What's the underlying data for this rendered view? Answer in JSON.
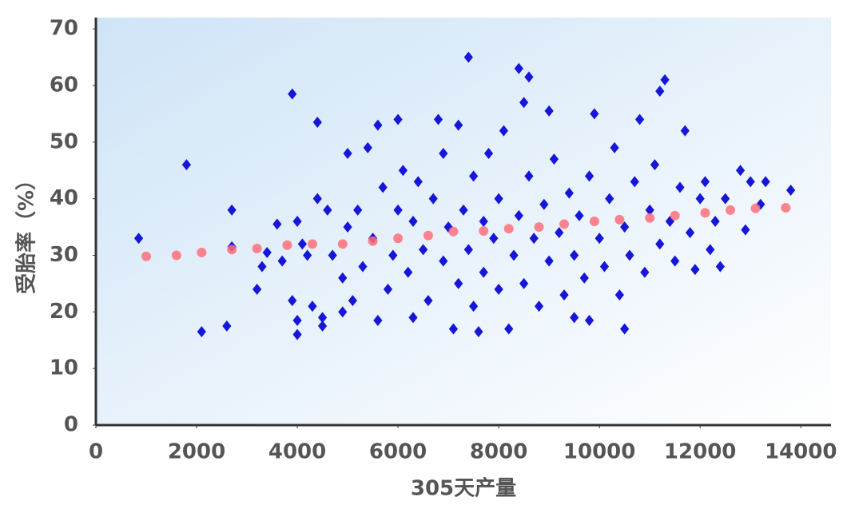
{
  "chart_data": {
    "type": "scatter",
    "x_label": "305天产量",
    "y_label": "受胎率（%）",
    "xlim": [
      0,
      14600
    ],
    "ylim": [
      0,
      72
    ],
    "xticks": [
      0,
      2000,
      4000,
      6000,
      8000,
      10000,
      12000,
      14000
    ],
    "yticks": [
      0,
      10,
      20,
      30,
      40,
      50,
      60,
      70
    ],
    "grid": false,
    "series": [
      {
        "marker": "diamond",
        "color": "#1616d8",
        "x": [
          850,
          1800,
          2100,
          2600,
          2700,
          2700,
          3200,
          3300,
          3400,
          3600,
          3700,
          3900,
          3900,
          4000,
          4000,
          4000,
          4100,
          4200,
          4300,
          4400,
          4400,
          4500,
          4500,
          4600,
          4700,
          4900,
          4900,
          5000,
          5000,
          5100,
          5200,
          5300,
          5400,
          5500,
          5600,
          5600,
          5700,
          5800,
          5900,
          6000,
          6000,
          6100,
          6200,
          6300,
          6300,
          6400,
          6500,
          6600,
          6700,
          6800,
          6900,
          6900,
          7000,
          7100,
          7200,
          7200,
          7300,
          7400,
          7400,
          7500,
          7500,
          7600,
          7700,
          7700,
          7800,
          7900,
          8000,
          8000,
          8100,
          8200,
          8300,
          8400,
          8400,
          8500,
          8500,
          8600,
          8600,
          8700,
          8800,
          8900,
          9000,
          9000,
          9100,
          9200,
          9300,
          9400,
          9500,
          9500,
          9600,
          9700,
          9800,
          9800,
          9900,
          10000,
          10100,
          10200,
          10300,
          10400,
          10500,
          10500,
          10600,
          10700,
          10800,
          10900,
          11000,
          11100,
          11200,
          11200,
          11300,
          11400,
          11500,
          11600,
          11700,
          11800,
          11900,
          12000,
          12100,
          12200,
          12300,
          12400,
          12500,
          12800,
          12900,
          13000,
          13200,
          13300,
          13800
        ],
        "values": [
          33,
          46,
          16.5,
          17.5,
          38,
          31.5,
          24,
          28,
          30.5,
          35.5,
          29,
          58.5,
          22,
          16,
          18.5,
          36,
          32,
          30,
          21,
          40,
          53.5,
          19,
          17.5,
          38,
          30,
          26,
          20,
          48,
          35,
          22,
          38,
          28,
          49,
          33,
          18.5,
          53,
          42,
          24,
          30,
          54,
          38,
          45,
          27,
          19,
          36,
          43,
          31,
          22,
          40,
          54,
          29,
          48,
          35,
          17,
          25,
          53,
          38,
          65,
          31,
          44,
          21,
          16.5,
          36,
          27,
          48,
          33,
          24,
          40,
          52,
          17,
          30,
          63,
          37,
          57,
          25,
          61.5,
          44,
          33,
          21,
          39,
          29,
          55.5,
          47,
          34,
          23,
          41,
          19,
          30,
          37,
          26,
          44,
          18.5,
          55,
          33,
          28,
          40,
          49,
          23,
          17,
          35,
          30,
          43,
          54,
          27,
          38,
          46,
          32,
          59,
          61,
          36,
          29,
          42,
          52,
          34,
          27.5,
          40,
          43,
          31,
          36,
          28,
          40,
          45,
          34.5,
          43,
          39,
          43,
          41.5
        ]
      },
      {
        "marker": "dot",
        "color": "#ff6f7a",
        "x": [
          1000,
          1600,
          2100,
          2700,
          3200,
          3800,
          4300,
          4900,
          5500,
          6000,
          6600,
          7100,
          7700,
          8200,
          8800,
          9300,
          9900,
          10400,
          11000,
          11500,
          12100,
          12600,
          13100,
          13700
        ],
        "values": [
          29.8,
          30,
          30.5,
          31,
          31.2,
          31.8,
          32,
          32,
          32.5,
          33,
          33.5,
          34.2,
          34.3,
          34.7,
          35,
          35.5,
          36,
          36.3,
          36.6,
          37,
          37.5,
          38,
          38.3,
          38.4
        ]
      }
    ]
  }
}
